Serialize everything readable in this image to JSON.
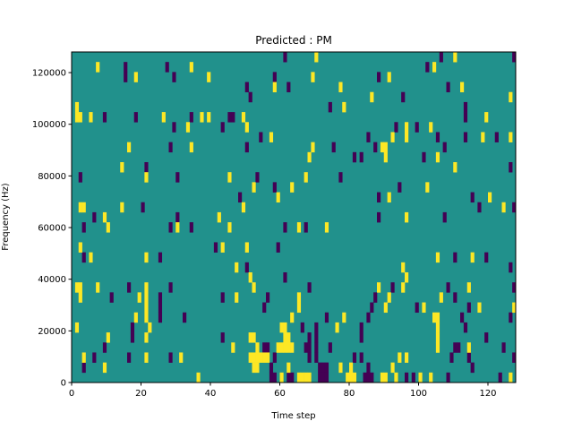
{
  "chart_data": {
    "type": "heatmap",
    "title": "Predicted : PM",
    "xlabel": "Time step",
    "ylabel": "Frequency (Hz)",
    "xlim": [
      0,
      128
    ],
    "ylim": [
      0,
      128000
    ],
    "n_time_steps": 128,
    "n_freq_bins": 33,
    "xticks": [
      0,
      20,
      40,
      60,
      80,
      100,
      120
    ],
    "xtick_labels": [
      "0",
      "20",
      "40",
      "60",
      "80",
      "100",
      "120"
    ],
    "yticks": [
      0,
      20000,
      40000,
      60000,
      80000,
      100000,
      120000
    ],
    "ytick_labels": [
      "0",
      "20000",
      "40000",
      "60000",
      "80000",
      "100000",
      "120000"
    ],
    "colors": {
      "background_mid": "#21918c",
      "low": "#440154",
      "high": "#fde725"
    },
    "background_value": 0.5,
    "cells_row_from_top": {
      "low": [
        [
          61,
          0
        ],
        [
          15,
          1
        ],
        [
          15,
          2
        ],
        [
          27,
          1
        ],
        [
          29,
          2
        ],
        [
          58,
          2
        ],
        [
          50,
          3
        ],
        [
          62,
          3
        ],
        [
          51,
          4
        ],
        [
          9,
          6
        ],
        [
          18,
          6
        ],
        [
          34,
          6
        ],
        [
          45,
          6
        ],
        [
          46,
          6
        ],
        [
          29,
          7
        ],
        [
          43,
          7
        ],
        [
          54,
          8
        ],
        [
          28,
          9
        ],
        [
          50,
          9
        ],
        [
          21,
          11
        ],
        [
          2,
          12
        ],
        [
          30,
          12
        ],
        [
          53,
          12
        ],
        [
          58,
          13
        ],
        [
          48,
          14
        ],
        [
          20,
          15
        ],
        [
          6,
          16
        ],
        [
          30,
          16
        ],
        [
          106,
          0
        ],
        [
          127,
          0
        ],
        [
          102,
          1
        ],
        [
          88,
          2
        ],
        [
          108,
          3
        ],
        [
          95,
          4
        ],
        [
          74,
          5
        ],
        [
          113,
          5
        ],
        [
          113,
          6
        ],
        [
          93,
          7
        ],
        [
          99,
          7
        ],
        [
          85,
          8
        ],
        [
          105,
          8
        ],
        [
          113,
          8
        ],
        [
          122,
          8
        ],
        [
          75,
          9
        ],
        [
          87,
          9
        ],
        [
          107,
          9
        ],
        [
          81,
          10
        ],
        [
          83,
          10
        ],
        [
          101,
          10
        ],
        [
          126,
          11
        ],
        [
          77,
          12
        ],
        [
          94,
          13
        ],
        [
          88,
          14
        ],
        [
          115,
          14
        ],
        [
          117,
          15
        ],
        [
          127,
          15
        ],
        [
          88,
          16
        ],
        [
          107,
          16
        ],
        [
          3,
          17
        ],
        [
          28,
          17
        ],
        [
          34,
          17
        ],
        [
          61,
          17
        ],
        [
          41,
          19
        ],
        [
          59,
          19
        ],
        [
          3,
          20
        ],
        [
          25,
          20
        ],
        [
          50,
          21
        ],
        [
          61,
          22
        ],
        [
          16,
          23
        ],
        [
          28,
          23
        ],
        [
          11,
          24
        ],
        [
          25,
          24
        ],
        [
          25,
          25
        ],
        [
          25,
          26
        ],
        [
          43,
          24
        ],
        [
          56,
          24
        ],
        [
          55,
          25
        ],
        [
          32,
          26
        ],
        [
          17,
          27
        ],
        [
          17,
          28
        ],
        [
          43,
          28
        ],
        [
          9,
          29
        ],
        [
          55,
          29
        ],
        [
          56,
          29
        ],
        [
          6,
          30
        ],
        [
          16,
          30
        ],
        [
          28,
          30
        ],
        [
          58,
          30
        ],
        [
          3,
          31
        ],
        [
          57,
          31
        ],
        [
          57,
          32
        ],
        [
          58,
          32
        ],
        [
          62,
          32
        ],
        [
          63,
          32
        ],
        [
          67,
          17
        ],
        [
          110,
          20
        ],
        [
          119,
          20
        ],
        [
          126,
          21
        ],
        [
          68,
          23
        ],
        [
          92,
          23
        ],
        [
          108,
          23
        ],
        [
          127,
          23
        ],
        [
          87,
          24
        ],
        [
          110,
          24
        ],
        [
          86,
          25
        ],
        [
          99,
          25
        ],
        [
          114,
          25
        ],
        [
          73,
          26
        ],
        [
          85,
          26
        ],
        [
          112,
          26
        ],
        [
          126,
          26
        ],
        [
          66,
          27
        ],
        [
          70,
          27
        ],
        [
          70,
          28
        ],
        [
          70,
          29
        ],
        [
          70,
          30
        ],
        [
          83,
          27
        ],
        [
          83,
          28
        ],
        [
          113,
          27
        ],
        [
          68,
          28
        ],
        [
          68,
          29
        ],
        [
          68,
          30
        ],
        [
          119,
          28
        ],
        [
          67,
          29
        ],
        [
          74,
          29
        ],
        [
          110,
          29
        ],
        [
          111,
          29
        ],
        [
          124,
          29
        ],
        [
          81,
          30
        ],
        [
          83,
          30
        ],
        [
          109,
          30
        ],
        [
          114,
          30
        ],
        [
          127,
          30
        ],
        [
          71,
          31
        ],
        [
          72,
          31
        ],
        [
          73,
          31
        ],
        [
          71,
          32
        ],
        [
          72,
          32
        ],
        [
          73,
          32
        ],
        [
          85,
          31
        ],
        [
          85,
          32
        ],
        [
          115,
          31
        ],
        [
          84,
          32
        ],
        [
          86,
          32
        ],
        [
          96,
          32
        ],
        [
          98,
          32
        ],
        [
          108,
          32
        ],
        [
          123,
          32
        ]
      ],
      "high": [
        [
          7,
          1
        ],
        [
          34,
          1
        ],
        [
          18,
          2
        ],
        [
          39,
          2
        ],
        [
          58,
          3
        ],
        [
          1,
          5
        ],
        [
          1,
          6
        ],
        [
          2,
          6
        ],
        [
          5,
          6
        ],
        [
          26,
          6
        ],
        [
          37,
          6
        ],
        [
          39,
          6
        ],
        [
          49,
          6
        ],
        [
          33,
          7
        ],
        [
          50,
          7
        ],
        [
          57,
          8
        ],
        [
          16,
          9
        ],
        [
          34,
          9
        ],
        [
          14,
          11
        ],
        [
          21,
          12
        ],
        [
          45,
          12
        ],
        [
          52,
          13
        ],
        [
          63,
          13
        ],
        [
          59,
          14
        ],
        [
          2,
          15
        ],
        [
          3,
          15
        ],
        [
          14,
          15
        ],
        [
          49,
          15
        ],
        [
          9,
          16
        ],
        [
          42,
          16
        ],
        [
          70,
          0
        ],
        [
          110,
          0
        ],
        [
          104,
          1
        ],
        [
          69,
          2
        ],
        [
          91,
          2
        ],
        [
          77,
          3
        ],
        [
          112,
          3
        ],
        [
          86,
          4
        ],
        [
          126,
          4
        ],
        [
          78,
          5
        ],
        [
          119,
          6
        ],
        [
          96,
          7
        ],
        [
          96,
          8
        ],
        [
          103,
          7
        ],
        [
          92,
          8
        ],
        [
          118,
          8
        ],
        [
          126,
          8
        ],
        [
          69,
          9
        ],
        [
          89,
          9
        ],
        [
          90,
          9
        ],
        [
          68,
          10
        ],
        [
          90,
          10
        ],
        [
          105,
          10
        ],
        [
          110,
          11
        ],
        [
          67,
          12
        ],
        [
          102,
          13
        ],
        [
          91,
          14
        ],
        [
          120,
          14
        ],
        [
          124,
          15
        ],
        [
          96,
          16
        ],
        [
          10,
          17
        ],
        [
          30,
          17
        ],
        [
          45,
          17
        ],
        [
          2,
          19
        ],
        [
          43,
          19
        ],
        [
          50,
          19
        ],
        [
          5,
          20
        ],
        [
          21,
          20
        ],
        [
          47,
          21
        ],
        [
          51,
          22
        ],
        [
          1,
          23
        ],
        [
          2,
          23
        ],
        [
          2,
          24
        ],
        [
          7,
          23
        ],
        [
          21,
          23
        ],
        [
          21,
          24
        ],
        [
          21,
          25
        ],
        [
          21,
          26
        ],
        [
          52,
          23
        ],
        [
          19,
          24
        ],
        [
          47,
          24
        ],
        [
          18,
          26
        ],
        [
          63,
          26
        ],
        [
          1,
          27
        ],
        [
          22,
          27
        ],
        [
          60,
          27
        ],
        [
          61,
          27
        ],
        [
          10,
          28
        ],
        [
          21,
          28
        ],
        [
          51,
          28
        ],
        [
          52,
          28
        ],
        [
          61,
          28
        ],
        [
          62,
          28
        ],
        [
          46,
          29
        ],
        [
          53,
          29
        ],
        [
          59,
          29
        ],
        [
          60,
          29
        ],
        [
          61,
          29
        ],
        [
          62,
          29
        ],
        [
          63,
          29
        ],
        [
          3,
          30
        ],
        [
          21,
          30
        ],
        [
          31,
          30
        ],
        [
          51,
          30
        ],
        [
          52,
          30
        ],
        [
          53,
          30
        ],
        [
          54,
          30
        ],
        [
          55,
          30
        ],
        [
          56,
          30
        ],
        [
          9,
          31
        ],
        [
          52,
          31
        ],
        [
          53,
          31
        ],
        [
          62,
          31
        ],
        [
          36,
          32
        ],
        [
          60,
          32
        ],
        [
          65,
          17
        ],
        [
          73,
          17
        ],
        [
          105,
          20
        ],
        [
          115,
          20
        ],
        [
          95,
          21
        ],
        [
          96,
          22
        ],
        [
          88,
          23
        ],
        [
          95,
          23
        ],
        [
          114,
          23
        ],
        [
          65,
          24
        ],
        [
          65,
          25
        ],
        [
          91,
          24
        ],
        [
          106,
          24
        ],
        [
          90,
          25
        ],
        [
          101,
          25
        ],
        [
          117,
          25
        ],
        [
          127,
          25
        ],
        [
          78,
          26
        ],
        [
          104,
          26
        ],
        [
          105,
          26
        ],
        [
          76,
          27
        ],
        [
          105,
          27
        ],
        [
          105,
          28
        ],
        [
          105,
          29
        ],
        [
          114,
          29
        ],
        [
          94,
          30
        ],
        [
          96,
          30
        ],
        [
          77,
          31
        ],
        [
          80,
          31
        ],
        [
          92,
          31
        ],
        [
          65,
          32
        ],
        [
          66,
          32
        ],
        [
          67,
          32
        ],
        [
          68,
          32
        ],
        [
          79,
          32
        ],
        [
          80,
          32
        ],
        [
          81,
          32
        ],
        [
          89,
          32
        ],
        [
          90,
          32
        ],
        [
          93,
          32
        ],
        [
          100,
          32
        ],
        [
          103,
          32
        ],
        [
          126,
          32
        ]
      ]
    }
  }
}
